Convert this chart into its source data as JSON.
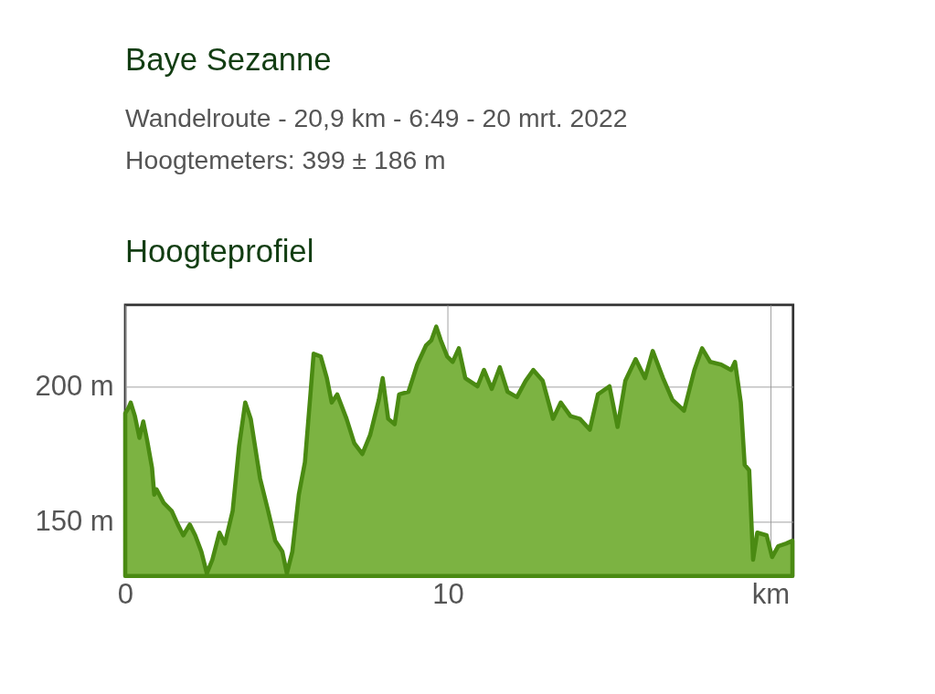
{
  "chart_data": {
    "type": "area",
    "title": "Baye Sezanne",
    "subtitle": "Wandelroute - 20,9 km - 6:49 - 20 mrt. 2022\nHoogtemeters: 399 ± 186 m",
    "annotations": [
      "Hoogteprofiel"
    ],
    "x": [
      0,
      0.1,
      0.17,
      0.3,
      0.44,
      0.56,
      0.68,
      0.83,
      0.9,
      0.97,
      1.19,
      1.44,
      1.63,
      1.8,
      2.0,
      2.17,
      2.36,
      2.53,
      2.7,
      2.92,
      3.09,
      3.33,
      3.53,
      3.72,
      3.89,
      4.18,
      4.43,
      4.65,
      4.87,
      5.01,
      5.18,
      5.38,
      5.57,
      5.74,
      5.84,
      6.06,
      6.25,
      6.4,
      6.57,
      6.86,
      7.1,
      7.35,
      7.59,
      7.86,
      7.98,
      8.15,
      8.35,
      8.49,
      8.78,
      9.05,
      9.32,
      9.49,
      9.64,
      9.78,
      9.98,
      10.15,
      10.34,
      10.54,
      10.92,
      11.12,
      11.36,
      11.61,
      11.85,
      12.14,
      12.41,
      12.65,
      12.94,
      13.26,
      13.5,
      13.8,
      14.09,
      14.4,
      14.65,
      15.01,
      15.26,
      15.5,
      15.82,
      16.11,
      16.35,
      16.67,
      16.96,
      17.32,
      17.64,
      17.88,
      18.13,
      18.47,
      18.78,
      18.9,
      19.08,
      19.2,
      19.34,
      19.46,
      19.59,
      19.88,
      20.05,
      20.24,
      20.49,
      20.68
    ],
    "series": [
      {
        "color": "#7cb342",
        "values": [
          190,
          192,
          194,
          189,
          181,
          187,
          180,
          170,
          160,
          162,
          157,
          154,
          149,
          145,
          149,
          145,
          139,
          131,
          136,
          146,
          142,
          154,
          178,
          194,
          188,
          166,
          154,
          143,
          139,
          131,
          139,
          160,
          172,
          197,
          212,
          211,
          203,
          194,
          197,
          188,
          179,
          175,
          182,
          195,
          203,
          188,
          186,
          197,
          198,
          208,
          215,
          217,
          222,
          217,
          211,
          209,
          214,
          203,
          200,
          206,
          199,
          207,
          198,
          196,
          202,
          206,
          202,
          188,
          194,
          189,
          188,
          184,
          197,
          200,
          185,
          202,
          210,
          203,
          213,
          203,
          195,
          191,
          206,
          214,
          209,
          208,
          206,
          209,
          194,
          171,
          169,
          136,
          146,
          145,
          137,
          141,
          142,
          143
        ]
      }
    ],
    "xlim": [
      0,
      20.7
    ],
    "ylim": [
      130,
      230
    ],
    "xticks": [
      0,
      10,
      {
        "value": 20,
        "label": "km"
      }
    ],
    "yticks": [
      {
        "value": 150,
        "label": "150 m"
      },
      {
        "value": 200,
        "label": "200 m"
      }
    ],
    "grid": true
  }
}
